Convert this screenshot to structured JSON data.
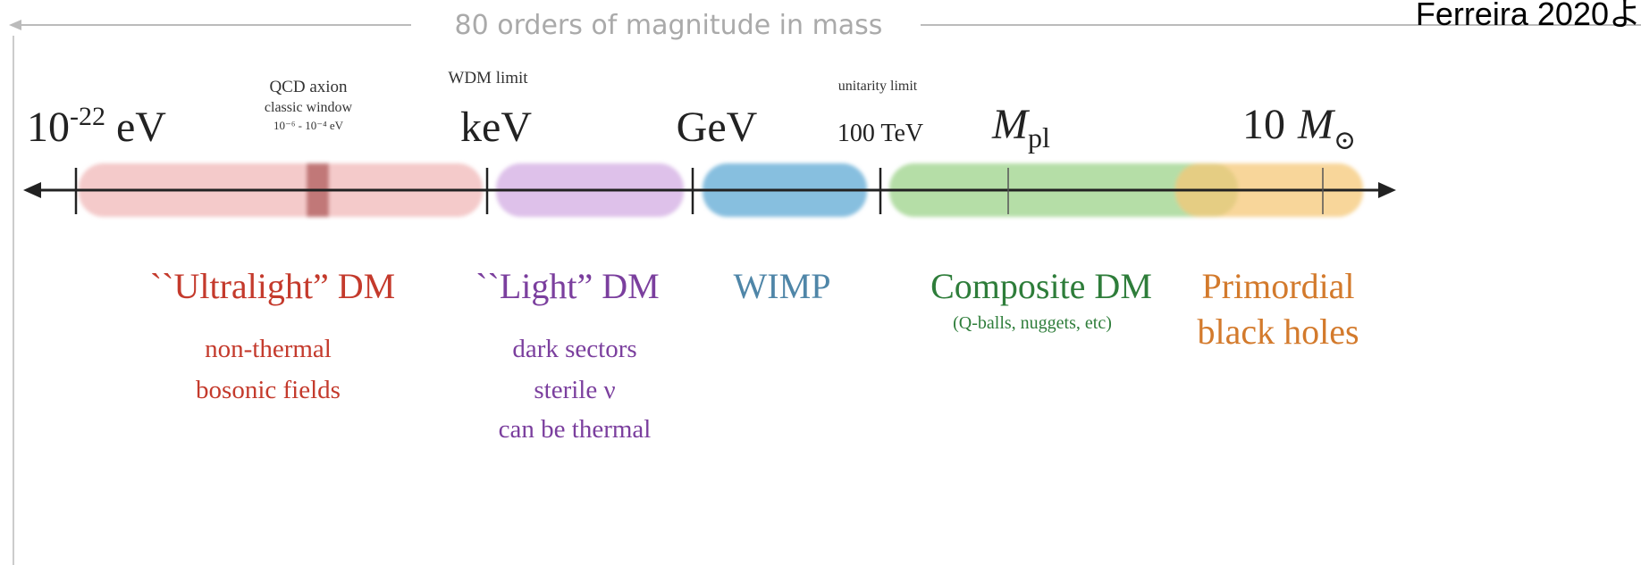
{
  "header": {
    "title": "80 orders of magnitude in mass",
    "credit": "Ferreira 2020よ"
  },
  "scale": {
    "ultralight": {
      "base": "10",
      "sup": "-22",
      "unit": "eV"
    },
    "kev": "keV",
    "gev": "GeV",
    "tev": "100 TeV",
    "planck": {
      "symbol": "M",
      "sub": "pl"
    },
    "solar": {
      "base": "10",
      "symbol": "M",
      "sub": "⊙"
    }
  },
  "annotations": {
    "qcd": [
      "QCD axion",
      "classic window",
      "10⁻⁶ - 10⁻⁴ eV"
    ],
    "wdm": "WDM limit",
    "unitarity": "unitarity limit"
  },
  "categories": [
    {
      "name": "``Ultralight” DM",
      "lines": [
        "non-thermal",
        "bosonic fields"
      ]
    },
    {
      "name": "``Light” DM",
      "lines": [
        "dark sectors",
        "sterile ν",
        "can be thermal"
      ]
    },
    {
      "name": "WIMP",
      "lines": []
    },
    {
      "name": "Composite DM",
      "lines": [
        "(Q-balls, nuggets, etc)"
      ]
    },
    {
      "name": "Primordial",
      "lines": [
        "black holes"
      ]
    }
  ]
}
